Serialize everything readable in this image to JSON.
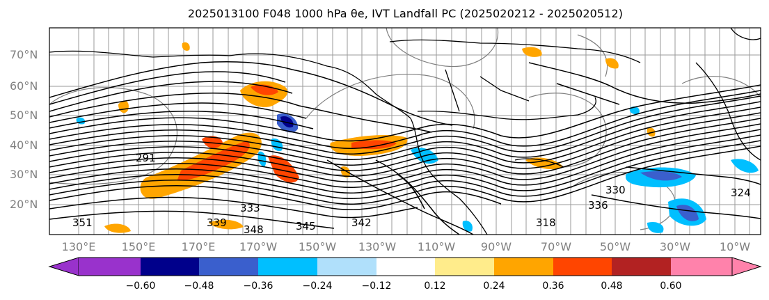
{
  "title": "2025013100 F048 1000 hPa θe, IVT Landfall PC (2025020212 - 2025020512)",
  "map": {
    "lat_labels": [
      "70°N",
      "60°N",
      "50°N",
      "40°N",
      "30°N",
      "20°N"
    ],
    "lon_labels": [
      "130°E",
      "150°E",
      "170°E",
      "170°W",
      "150°W",
      "130°W",
      "110°W",
      "90°W",
      "70°W",
      "50°W",
      "30°W",
      "10°W"
    ],
    "contour_labels": [
      "291",
      "333",
      "339",
      "345",
      "351",
      "336",
      "330",
      "318",
      "324",
      "342",
      "348"
    ]
  },
  "colorbar": {
    "tick_labels": [
      "−0.60",
      "−0.48",
      "−0.36",
      "−0.24",
      "−0.12",
      "0.12",
      "0.24",
      "0.36",
      "0.48",
      "0.60"
    ],
    "colors": [
      "#9932cc",
      "#00008b",
      "#3a5fcd",
      "#00bfff",
      "#b0e0fb",
      "#ffffff",
      "#ffec8b",
      "#ffa500",
      "#ff4500",
      "#b22222",
      "#ff82ab"
    ]
  }
}
